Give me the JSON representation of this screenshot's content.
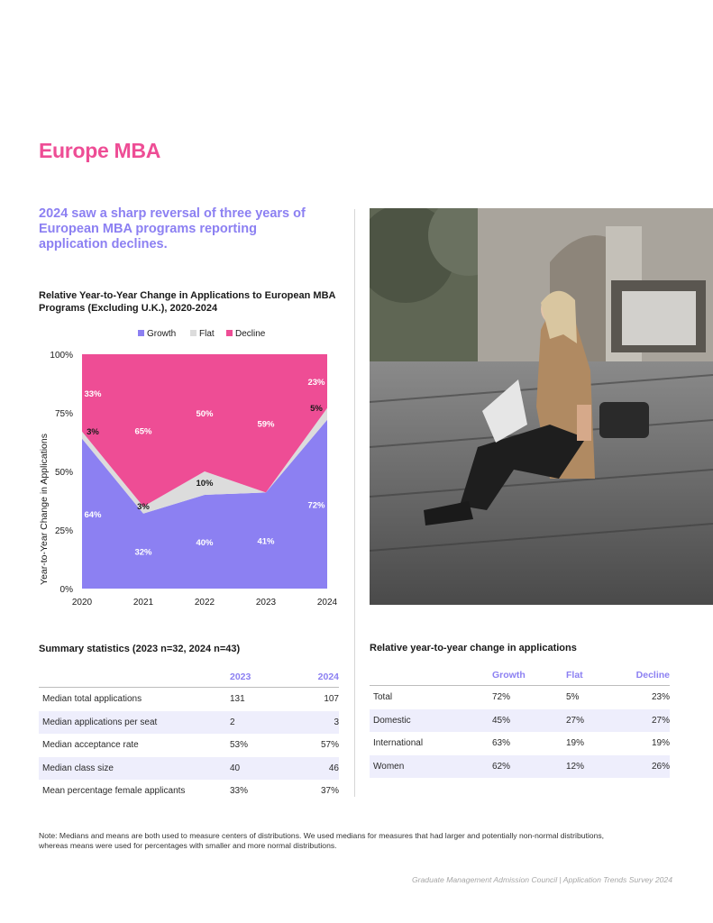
{
  "page": {
    "title": "Europe MBA",
    "headline": "2024 saw a sharp reversal of three years of European MBA programs reporting application declines.",
    "note": "Note: Medians and means are both used to measure centers of distributions. We used medians for measures that had larger and potentially non-normal distributions, whereas means were used for percentages with smaller and more normal distributions.",
    "footer": "Graduate Management Admission Council | Application Trends Survey 2024"
  },
  "colors": {
    "growth": "#8c80f2",
    "flat": "#dcdcdc",
    "decline": "#ee4d95",
    "accent_pink": "#ee4d95",
    "accent_purple": "#8c80f2"
  },
  "chart_data": {
    "type": "area",
    "title": "Relative Year-to-Year Change in Applications to European MBA Programs (Excluding U.K.), 2020-2024",
    "ylabel": "Year-to-Year Change in Applications",
    "xlabel": "",
    "stacked": true,
    "normalized_100": true,
    "categories": [
      "2020",
      "2021",
      "2022",
      "2023",
      "2024"
    ],
    "ylim": [
      0,
      100
    ],
    "yticks": [
      "0%",
      "25%",
      "50%",
      "75%",
      "100%"
    ],
    "legend_position": "top-center",
    "series": [
      {
        "name": "Growth",
        "values": [
          64,
          32,
          40,
          41,
          72
        ],
        "labels": [
          "64%",
          "32%",
          "40%",
          "41%",
          "72%"
        ]
      },
      {
        "name": "Flat",
        "values": [
          3,
          3,
          10,
          0,
          5
        ],
        "labels": [
          "3%",
          "3%",
          "10%",
          "",
          "5%"
        ]
      },
      {
        "name": "Decline",
        "values": [
          33,
          65,
          50,
          59,
          23
        ],
        "labels": [
          "33%",
          "65%",
          "50%",
          "59%",
          "23%"
        ]
      }
    ]
  },
  "summary_stats": {
    "title": "Summary statistics (2023 n=32, 2024 n=43)",
    "columns": [
      "",
      "2023",
      "2024"
    ],
    "rows": [
      {
        "label": "Median total applications",
        "v2023": "131",
        "v2024": "107"
      },
      {
        "label": "Median applications per seat",
        "v2023": "2",
        "v2024": "3"
      },
      {
        "label": "Median acceptance rate",
        "v2023": "53%",
        "v2024": "57%"
      },
      {
        "label": "Median class size",
        "v2023": "40",
        "v2024": "46"
      },
      {
        "label": "Mean percentage female applicants",
        "v2023": "33%",
        "v2024": "37%"
      }
    ]
  },
  "change_table": {
    "title": "Relative year-to-year change in applications",
    "columns": [
      "",
      "Growth",
      "Flat",
      "Decline"
    ],
    "rows": [
      {
        "label": "Total",
        "growth": "72%",
        "flat": "5%",
        "decline": "23%"
      },
      {
        "label": "Domestic",
        "growth": "45%",
        "flat": "27%",
        "decline": "27%"
      },
      {
        "label": "International",
        "growth": "63%",
        "flat": "19%",
        "decline": "19%"
      },
      {
        "label": "Women",
        "growth": "62%",
        "flat": "12%",
        "decline": "26%"
      }
    ]
  }
}
